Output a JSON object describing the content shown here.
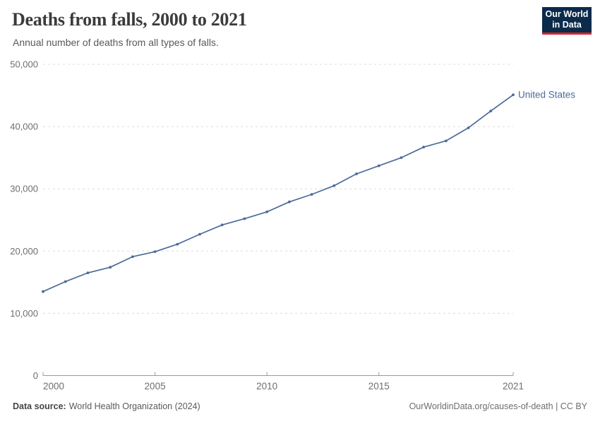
{
  "header": {
    "title": "Deaths from falls, 2000 to 2021",
    "subtitle": "Annual number of deaths from all types of falls.",
    "logo_line1": "Our World",
    "logo_line2": "in Data"
  },
  "footer": {
    "source_label": "Data source:",
    "source_value": "World Health Organization (2024)",
    "credit": "OurWorldinData.org/causes-of-death | CC BY"
  },
  "colors": {
    "line": "#4c6a9c",
    "entity_label": "#4c6a9c",
    "grid": "#dcdcdc",
    "axis": "#9a9a9a",
    "tick_text": "#6e6e6e",
    "logo_bg": "#0b2b4b",
    "logo_red": "#d8252e"
  },
  "chart_data": {
    "type": "line",
    "title": "Deaths from falls, 2000 to 2021",
    "subtitle": "Annual number of deaths from all types of falls.",
    "xlabel": "",
    "ylabel": "",
    "xlim": [
      2000,
      2021
    ],
    "ylim": [
      0,
      50000
    ],
    "grid": "horizontal-dashed",
    "legend_position": "inline-right-of-last-point",
    "x": [
      2000,
      2001,
      2002,
      2003,
      2004,
      2005,
      2006,
      2007,
      2008,
      2009,
      2010,
      2011,
      2012,
      2013,
      2014,
      2015,
      2016,
      2017,
      2018,
      2019,
      2020,
      2021
    ],
    "series": [
      {
        "name": "United States",
        "values": [
          13500,
          15100,
          16500,
          17400,
          19100,
          19900,
          21100,
          22700,
          24200,
          25200,
          26300,
          27900,
          29100,
          30500,
          32400,
          33700,
          35000,
          36700,
          37700,
          39800,
          42500,
          45100
        ]
      }
    ],
    "y_ticks": {
      "values": [
        0,
        10000,
        20000,
        30000,
        40000,
        50000
      ],
      "labels": [
        "0",
        "10,000",
        "20,000",
        "30,000",
        "40,000",
        "50,000"
      ]
    },
    "x_ticks": {
      "values": [
        2000,
        2005,
        2010,
        2015,
        2021
      ],
      "labels": [
        "2000",
        "2005",
        "2010",
        "2015",
        "2021"
      ]
    }
  }
}
